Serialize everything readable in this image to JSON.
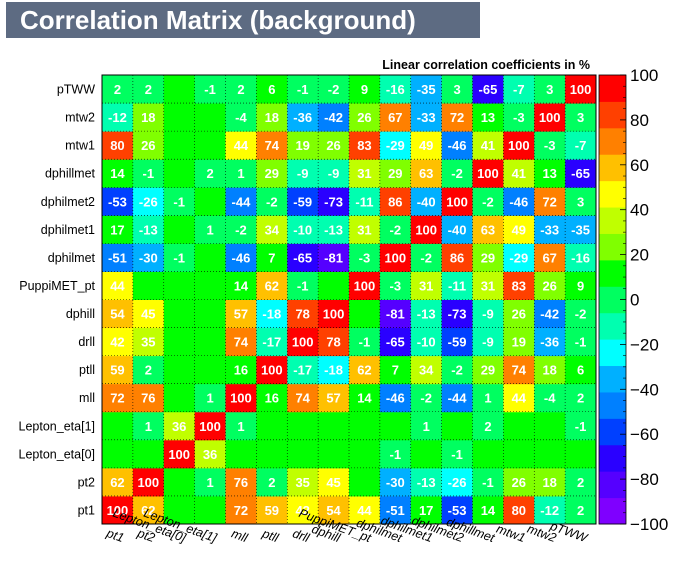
{
  "title": "Correlation Matrix (background)",
  "chart_data": {
    "type": "heatmap",
    "subtitle": "Linear correlation coefficients in %",
    "x_labels": [
      "pt1",
      "pt2",
      "Lepton_eta[0]",
      "Lepton_eta[1]",
      "mll",
      "ptll",
      "drll",
      "dphill",
      "PuppiMET_pt",
      "dphilmet",
      "dphilmet1",
      "dphilmet2",
      "dphillmet",
      "mtw1",
      "mtw2",
      "pTWW"
    ],
    "y_labels_bottom_to_top": [
      "pt1",
      "pt2",
      "Lepton_eta[0]",
      "Lepton_eta[1]",
      "mll",
      "ptll",
      "drll",
      "dphill",
      "PuppiMET_pt",
      "dphilmet",
      "dphilmet1",
      "dphilmet2",
      "dphillmet",
      "mtw1",
      "mtw2",
      "pTWW"
    ],
    "values_rows_bottom_to_top": [
      [
        100,
        62,
        null,
        null,
        72,
        59,
        42,
        54,
        44,
        -51,
        17,
        -53,
        14,
        80,
        -12,
        2
      ],
      [
        62,
        100,
        null,
        1,
        76,
        2,
        35,
        45,
        null,
        -30,
        -13,
        -26,
        -1,
        26,
        18,
        2
      ],
      [
        null,
        null,
        100,
        36,
        null,
        null,
        null,
        null,
        null,
        -1,
        null,
        -1,
        null,
        null,
        null,
        null
      ],
      [
        null,
        1,
        36,
        100,
        1,
        null,
        null,
        null,
        null,
        null,
        1,
        null,
        2,
        null,
        null,
        -1
      ],
      [
        72,
        76,
        null,
        1,
        100,
        16,
        74,
        57,
        14,
        -46,
        -2,
        -44,
        1,
        44,
        -4,
        2
      ],
      [
        59,
        2,
        null,
        null,
        16,
        100,
        -17,
        -18,
        62,
        7,
        34,
        -2,
        29,
        74,
        18,
        6
      ],
      [
        42,
        35,
        null,
        null,
        74,
        -17,
        100,
        78,
        -1,
        -65,
        -10,
        -59,
        -9,
        19,
        -36,
        -1
      ],
      [
        54,
        45,
        null,
        null,
        57,
        -18,
        78,
        100,
        null,
        -81,
        -13,
        -73,
        -9,
        26,
        -42,
        -2
      ],
      [
        44,
        null,
        null,
        null,
        14,
        62,
        -1,
        null,
        100,
        -3,
        31,
        -11,
        31,
        83,
        26,
        9
      ],
      [
        -51,
        -30,
        -1,
        null,
        -46,
        7,
        -65,
        -81,
        -3,
        100,
        -2,
        86,
        29,
        -29,
        67,
        -16
      ],
      [
        17,
        -13,
        null,
        1,
        -2,
        34,
        -10,
        -13,
        31,
        -2,
        100,
        -40,
        63,
        49,
        -33,
        -35
      ],
      [
        -53,
        -26,
        -1,
        null,
        -44,
        -2,
        -59,
        -73,
        -11,
        86,
        -40,
        100,
        -2,
        -46,
        72,
        3
      ],
      [
        14,
        -1,
        null,
        2,
        1,
        29,
        -9,
        -9,
        31,
        29,
        63,
        -2,
        100,
        41,
        13,
        -65
      ],
      [
        80,
        26,
        null,
        null,
        44,
        74,
        19,
        26,
        83,
        -29,
        49,
        -46,
        41,
        100,
        -3,
        -7
      ],
      [
        -12,
        18,
        null,
        null,
        -4,
        18,
        -36,
        -42,
        26,
        67,
        -33,
        72,
        13,
        -3,
        100,
        3
      ],
      [
        2,
        2,
        null,
        -1,
        2,
        6,
        -1,
        -2,
        9,
        -16,
        -35,
        3,
        -65,
        -7,
        3,
        100
      ]
    ],
    "zlim": [
      -100,
      100
    ],
    "colorbar_ticks": [
      "100",
      "80",
      "60",
      "40",
      "20",
      "0",
      "−20",
      "−40",
      "−60",
      "−80",
      "−100"
    ],
    "grid": true
  }
}
